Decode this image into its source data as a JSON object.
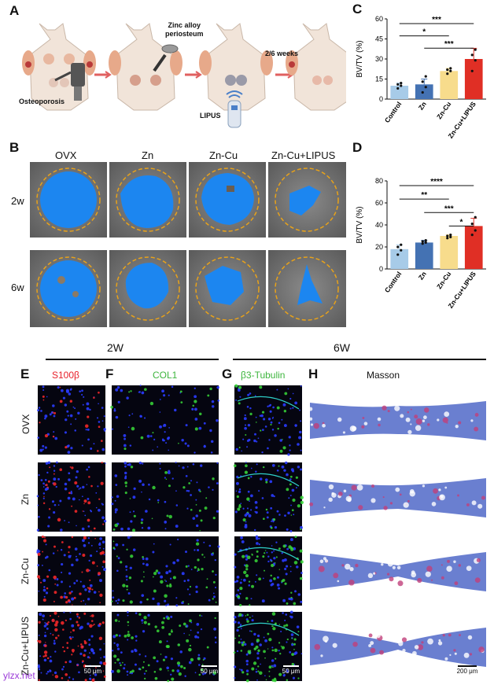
{
  "panel_letters": [
    "A",
    "B",
    "C",
    "D",
    "E",
    "F",
    "G",
    "H"
  ],
  "panelA": {
    "label_osteoporosis": "Osteoporosis",
    "label_zinc": "Zinc alloy periosteum",
    "label_zinc_line1": "Zinc alloy",
    "label_zinc_line2": "periosteum",
    "label_lipus": "LIPUS",
    "label_weeks": "2/6 weeks"
  },
  "panelB": {
    "col_headers": [
      "OVX",
      "Zn",
      "Zn-Cu",
      "Zn-Cu+LIPUS"
    ],
    "row_headers": [
      "2w",
      "6w"
    ]
  },
  "bottom": {
    "header_2w": "2W",
    "header_6w": "6W",
    "stain_E": "S100β",
    "stain_F": "COL1",
    "stain_G": "β3-Tubulin",
    "stain_H": "Masson",
    "row_labels": [
      "OVX",
      "Zn",
      "Zn-Cu",
      "Zn-Cu+LIPUS"
    ],
    "scale_50": "50 μm",
    "scale_200": "200 μm",
    "watermark": "ylzx.net"
  },
  "colors": {
    "control": "#a7cbe8",
    "zn": "#4472b3",
    "zncu": "#f7dc8c",
    "zncu_lipus": "#e02f25",
    "s100": "#e8202a",
    "col1": "#3db53d",
    "tubulin": "#3db53d",
    "ct_blue": "#1c86f0",
    "dashed": "#e8a21a"
  },
  "chart_data": [
    {
      "id": "C",
      "type": "bar",
      "ylabel": "BV/TV (%)",
      "ylim": [
        0,
        60
      ],
      "yticks": [
        0,
        15,
        30,
        45,
        60
      ],
      "categories": [
        "Control",
        "Zn",
        "Zn-Cu",
        "Zn-Cu+LIPUS"
      ],
      "values": [
        10,
        11,
        21,
        30
      ],
      "errors": [
        2,
        4,
        2,
        8
      ],
      "points": [
        [
          8,
          10,
          11,
          12
        ],
        [
          5,
          9,
          13,
          17
        ],
        [
          19,
          21,
          22,
          23
        ],
        [
          21,
          29,
          33,
          37
        ]
      ],
      "significance": [
        {
          "from": 0,
          "to": 2,
          "label": "*"
        },
        {
          "from": 1,
          "to": 3,
          "label": "***"
        },
        {
          "from": 0,
          "to": 3,
          "label": "***"
        }
      ]
    },
    {
      "id": "D",
      "type": "bar",
      "ylabel": "BV/TV (%)",
      "ylim": [
        0,
        80
      ],
      "yticks": [
        0,
        20,
        40,
        60,
        80
      ],
      "categories": [
        "Control",
        "Zn",
        "Zn-Cu",
        "Zn-Cu+LIPUS"
      ],
      "values": [
        18,
        24,
        30,
        39
      ],
      "errors": [
        4,
        2,
        1,
        7
      ],
      "points": [
        [
          13,
          17,
          20,
          22
        ],
        [
          23,
          24,
          25,
          26
        ],
        [
          28,
          29,
          30,
          31
        ],
        [
          31,
          35,
          41,
          47
        ]
      ],
      "significance": [
        {
          "from": 0,
          "to": 2,
          "label": "**"
        },
        {
          "from": 1,
          "to": 3,
          "label": "***"
        },
        {
          "from": 2,
          "to": 3,
          "label": "*"
        },
        {
          "from": 0,
          "to": 3,
          "label": "****"
        }
      ]
    }
  ]
}
